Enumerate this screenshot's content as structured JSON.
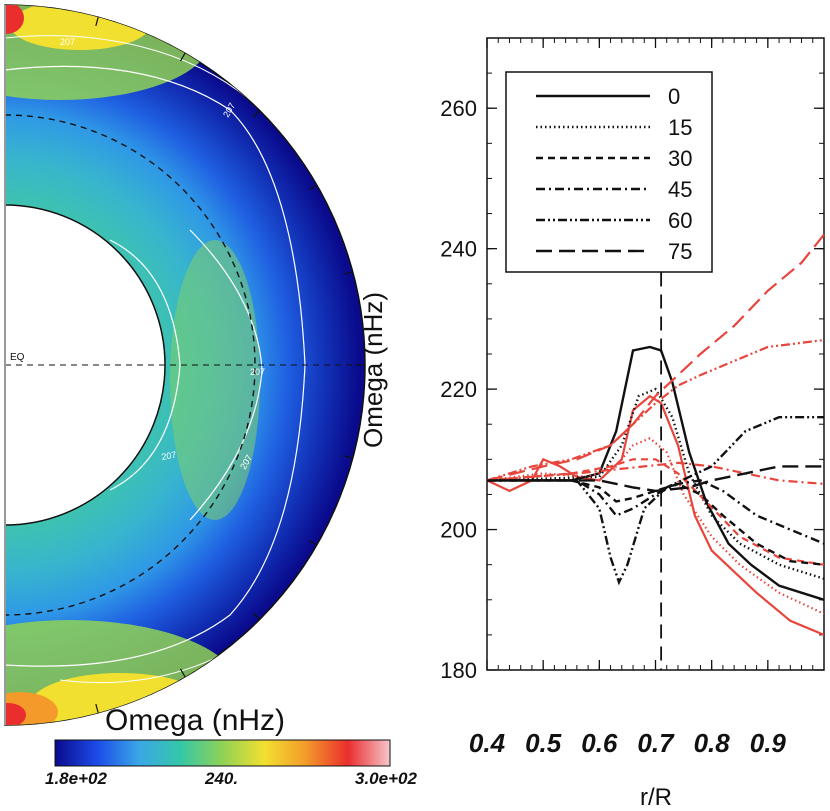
{
  "chart_data": [
    {
      "type": "heatmap",
      "subtype": "meridional-quadrant",
      "title": "Omega (nHz)",
      "equator_label": "EQ",
      "contour_labels": [
        "207",
        "207",
        "207",
        "207",
        "207"
      ],
      "colorbar": {
        "min_label": "1.8e+02",
        "mid_label": "240.",
        "max_label": "3.0e+02",
        "min": 180,
        "max": 300,
        "colors": [
          "#0a0a8c",
          "#1c4be8",
          "#3aa6e6",
          "#35c7a8",
          "#8fd255",
          "#f2e030",
          "#f39a2a",
          "#ea2e2e",
          "#f6c6cc"
        ]
      },
      "inner_radius_fraction": 0.45,
      "tachocline_radius_fraction": 0.71
    },
    {
      "type": "line",
      "xlabel": "r/R",
      "ylabel": "Omega (nHz)",
      "xlim": [
        0.4,
        1.0
      ],
      "ylim": [
        180,
        270
      ],
      "x_ticks": [
        "0.4",
        "0.5",
        "0.6",
        "0.7",
        "0.8",
        "0.9"
      ],
      "y_ticks": [
        "180",
        "200",
        "220",
        "240",
        "260"
      ],
      "vline": 0.71,
      "legend_position": "top-left",
      "colors": {
        "model_a": "#111111",
        "model_b": "#e8453c"
      },
      "series": [
        {
          "name": "0",
          "dash": "solid",
          "black": [
            [
              0.4,
              207
            ],
            [
              0.55,
              207
            ],
            [
              0.6,
              208
            ],
            [
              0.63,
              214
            ],
            [
              0.66,
              225.5
            ],
            [
              0.69,
              226
            ],
            [
              0.71,
              225.5
            ],
            [
              0.73,
              221
            ],
            [
              0.76,
              211
            ],
            [
              0.79,
              204
            ],
            [
              0.83,
              198
            ],
            [
              0.87,
              195
            ],
            [
              0.92,
              192
            ],
            [
              1.0,
              190
            ]
          ],
          "red": [
            [
              0.4,
              207
            ],
            [
              0.44,
              205.5
            ],
            [
              0.48,
              207
            ],
            [
              0.5,
              210
            ],
            [
              0.53,
              209
            ],
            [
              0.56,
              207.5
            ],
            [
              0.6,
              207
            ],
            [
              0.64,
              210
            ],
            [
              0.66,
              217
            ],
            [
              0.69,
              219
            ],
            [
              0.71,
              218
            ],
            [
              0.74,
              212
            ],
            [
              0.77,
              202
            ],
            [
              0.8,
              197
            ],
            [
              0.84,
              194
            ],
            [
              0.88,
              191
            ],
            [
              0.94,
              187
            ],
            [
              1.0,
              185
            ]
          ]
        },
        {
          "name": "15",
          "dash": "dotted",
          "black": [
            [
              0.4,
              207
            ],
            [
              0.6,
              207.5
            ],
            [
              0.64,
              212
            ],
            [
              0.67,
              219
            ],
            [
              0.7,
              220
            ],
            [
              0.73,
              216
            ],
            [
              0.76,
              208
            ],
            [
              0.8,
              202
            ],
            [
              0.85,
              198
            ],
            [
              0.92,
              195
            ],
            [
              1.0,
              193
            ]
          ],
          "red": [
            [
              0.4,
              207
            ],
            [
              0.5,
              208
            ],
            [
              0.58,
              207.5
            ],
            [
              0.63,
              209
            ],
            [
              0.66,
              212
            ],
            [
              0.69,
              213
            ],
            [
              0.72,
              211
            ],
            [
              0.75,
              205
            ],
            [
              0.8,
              199
            ],
            [
              0.85,
              195
            ],
            [
              0.92,
              191
            ],
            [
              1.0,
              188
            ]
          ]
        },
        {
          "name": "30",
          "dash": "dashed",
          "black": [
            [
              0.4,
              207
            ],
            [
              0.55,
              207
            ],
            [
              0.6,
              206
            ],
            [
              0.63,
              204
            ],
            [
              0.66,
              204.5
            ],
            [
              0.7,
              205.5
            ],
            [
              0.74,
              206.5
            ],
            [
              0.78,
              205
            ],
            [
              0.82,
              202
            ],
            [
              0.88,
              198
            ],
            [
              0.94,
              195.5
            ],
            [
              1.0,
              195
            ]
          ],
          "red": [
            [
              0.4,
              207
            ],
            [
              0.55,
              208
            ],
            [
              0.62,
              209
            ],
            [
              0.66,
              210
            ],
            [
              0.7,
              210
            ],
            [
              0.74,
              208
            ],
            [
              0.79,
              204
            ],
            [
              0.85,
              199
            ],
            [
              0.92,
              196
            ],
            [
              1.0,
              195
            ]
          ]
        },
        {
          "name": "45",
          "dash": "dash-dot",
          "black": [
            [
              0.4,
              207
            ],
            [
              0.56,
              207
            ],
            [
              0.6,
              205
            ],
            [
              0.63,
              202
            ],
            [
              0.66,
              203
            ],
            [
              0.7,
              205
            ],
            [
              0.74,
              206.5
            ],
            [
              0.78,
              207
            ],
            [
              0.82,
              205.5
            ],
            [
              0.88,
              202
            ],
            [
              0.94,
              200
            ],
            [
              1.0,
              198
            ]
          ],
          "red": [
            [
              0.4,
              207
            ],
            [
              0.56,
              208
            ],
            [
              0.62,
              208.5
            ],
            [
              0.68,
              209
            ],
            [
              0.74,
              209.5
            ],
            [
              0.8,
              209
            ],
            [
              0.86,
              208
            ],
            [
              0.92,
              207
            ],
            [
              1.0,
              206.5
            ]
          ]
        },
        {
          "name": "60",
          "dash": "dash-dot-dot",
          "black": [
            [
              0.4,
              207
            ],
            [
              0.56,
              207
            ],
            [
              0.6,
              203
            ],
            [
              0.62,
              196
            ],
            [
              0.635,
              192.5
            ],
            [
              0.65,
              195
            ],
            [
              0.68,
              203
            ],
            [
              0.72,
              206
            ],
            [
              0.76,
              207.5
            ],
            [
              0.8,
              209
            ],
            [
              0.86,
              214
            ],
            [
              0.92,
              216
            ],
            [
              1.0,
              216
            ]
          ],
          "red": [
            [
              0.4,
              207
            ],
            [
              0.48,
              209
            ],
            [
              0.55,
              210
            ],
            [
              0.62,
              212
            ],
            [
              0.66,
              215
            ],
            [
              0.7,
              218
            ],
            [
              0.74,
              220.5
            ],
            [
              0.78,
              222
            ],
            [
              0.84,
              224
            ],
            [
              0.9,
              226
            ],
            [
              1.0,
              227
            ]
          ]
        },
        {
          "name": "75",
          "dash": "long-dash",
          "black": [
            [
              0.4,
              207
            ],
            [
              0.6,
              207
            ],
            [
              0.66,
              206
            ],
            [
              0.7,
              205.5
            ],
            [
              0.76,
              206
            ],
            [
              0.8,
              207
            ],
            [
              0.86,
              208
            ],
            [
              0.92,
              209
            ],
            [
              1.0,
              209
            ]
          ],
          "red": [
            [
              0.4,
              207
            ],
            [
              0.5,
              209
            ],
            [
              0.56,
              210
            ],
            [
              0.62,
              212
            ],
            [
              0.66,
              215
            ],
            [
              0.7,
              219
            ],
            [
              0.74,
              222
            ],
            [
              0.78,
              225
            ],
            [
              0.84,
              229
            ],
            [
              0.9,
              234
            ],
            [
              0.96,
              238
            ],
            [
              1.0,
              242
            ]
          ]
        }
      ]
    }
  ]
}
